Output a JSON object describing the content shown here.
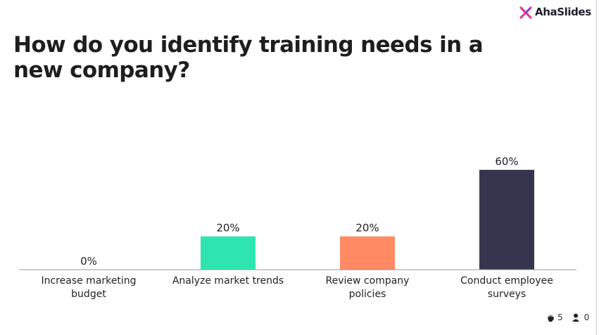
{
  "brand": "AhaSlides",
  "footer": {
    "responses": 5,
    "participants": 0
  },
  "chart_data": {
    "type": "bar",
    "title": "How do you identify training needs in a new company?",
    "categories": [
      "Increase marketing budget",
      "Analyze market trends",
      "Review company policies",
      "Conduct employee surveys"
    ],
    "values": [
      0,
      20,
      20,
      60
    ],
    "value_labels": [
      "0%",
      "20%",
      "20%",
      "60%"
    ],
    "colors": [
      "#7b61ff",
      "#2ee5b0",
      "#ff8a63",
      "#35364e"
    ],
    "ylim": [
      0,
      100
    ]
  }
}
